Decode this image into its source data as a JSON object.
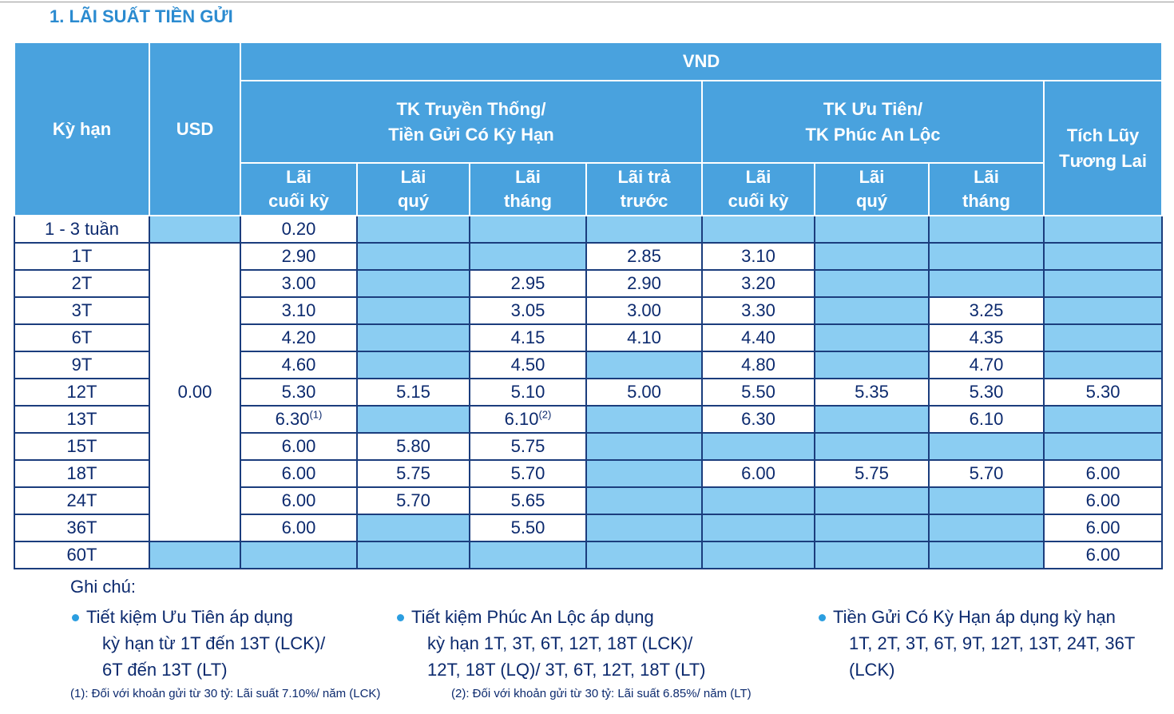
{
  "title": "1. LÃI SUẤT TIỀN GỬI",
  "table": {
    "header": {
      "term": "Kỳ hạn",
      "usd": "USD",
      "vnd": "VND",
      "groups": [
        {
          "lines": [
            "TK Truyền Thống/",
            "Tiền Gửi Có Kỳ Hạn"
          ]
        },
        {
          "lines": [
            "TK Ưu Tiên/",
            "TK Phúc An Lộc"
          ]
        },
        {
          "lines": [
            "Tích Lũy",
            "Tương Lai"
          ]
        }
      ],
      "subheaders": [
        {
          "lines": [
            "Lãi",
            "cuối kỳ"
          ]
        },
        {
          "lines": [
            "Lãi",
            "quý"
          ]
        },
        {
          "lines": [
            "Lãi",
            "tháng"
          ]
        },
        {
          "lines": [
            "Lãi trả",
            "trước"
          ]
        },
        {
          "lines": [
            "Lãi",
            "cuối kỳ"
          ]
        },
        {
          "lines": [
            "Lãi",
            "quý"
          ]
        },
        {
          "lines": [
            "Lãi",
            "tháng"
          ]
        }
      ]
    },
    "usd_value": "0.00",
    "rows": [
      {
        "term": "1 - 3 tuần",
        "cells": [
          "0.20",
          null,
          null,
          null,
          null,
          null,
          null,
          null
        ]
      },
      {
        "term": "1T",
        "cells": [
          "2.90",
          null,
          null,
          "2.85",
          "3.10",
          null,
          null,
          null
        ]
      },
      {
        "term": "2T",
        "cells": [
          "3.00",
          null,
          "2.95",
          "2.90",
          "3.20",
          null,
          null,
          null
        ]
      },
      {
        "term": "3T",
        "cells": [
          "3.10",
          null,
          "3.05",
          "3.00",
          "3.30",
          null,
          "3.25",
          null
        ]
      },
      {
        "term": "6T",
        "cells": [
          "4.20",
          null,
          "4.15",
          "4.10",
          "4.40",
          null,
          "4.35",
          null
        ]
      },
      {
        "term": "9T",
        "cells": [
          "4.60",
          null,
          "4.50",
          null,
          "4.80",
          null,
          "4.70",
          null
        ]
      },
      {
        "term": "12T",
        "cells": [
          "5.30",
          "5.15",
          "5.10",
          "5.00",
          "5.50",
          "5.35",
          "5.30",
          "5.30"
        ]
      },
      {
        "term": "13T",
        "cells": [
          {
            "value": "6.30",
            "note": "(1)"
          },
          null,
          {
            "value": "6.10",
            "note": "(2)"
          },
          null,
          "6.30",
          null,
          "6.10",
          null
        ]
      },
      {
        "term": "15T",
        "cells": [
          "6.00",
          "5.80",
          "5.75",
          null,
          null,
          null,
          null,
          null
        ]
      },
      {
        "term": "18T",
        "cells": [
          "6.00",
          "5.75",
          "5.70",
          null,
          "6.00",
          "5.75",
          "5.70",
          "6.00"
        ]
      },
      {
        "term": "24T",
        "cells": [
          "6.00",
          "5.70",
          "5.65",
          null,
          null,
          null,
          null,
          "6.00"
        ]
      },
      {
        "term": "36T",
        "cells": [
          "6.00",
          null,
          "5.50",
          null,
          null,
          null,
          null,
          "6.00"
        ]
      },
      {
        "term": "60T",
        "cells": [
          null,
          null,
          null,
          null,
          null,
          null,
          null,
          "6.00"
        ]
      }
    ]
  },
  "notes": {
    "heading": "Ghi chú:",
    "bullets": [
      {
        "lines": [
          "Tiết kiệm Ưu Tiên áp dụng",
          "kỳ hạn từ 1T đến 13T (LCK)/",
          "6T đến 13T (LT)"
        ]
      },
      {
        "lines": [
          "Tiết kiệm Phúc An Lộc áp dụng",
          "kỳ hạn 1T, 3T, 6T, 12T, 18T (LCK)/",
          "12T, 18T (LQ)/ 3T, 6T, 12T, 18T (LT)"
        ]
      },
      {
        "lines": [
          "Tiền Gửi Có Kỳ Hạn áp dụng kỳ hạn",
          "1T, 2T, 3T, 6T, 9T, 12T, 13T, 24T, 36T",
          "(LCK)"
        ]
      }
    ],
    "footnotes": [
      "(1): Đối với khoản gửi từ 30 tỷ: Lãi suất 7.10%/ năm (LCK)",
      "(2): Đối với khoản gửi từ 30 tỷ: Lãi suất 6.85%/ năm (LT)"
    ]
  }
}
